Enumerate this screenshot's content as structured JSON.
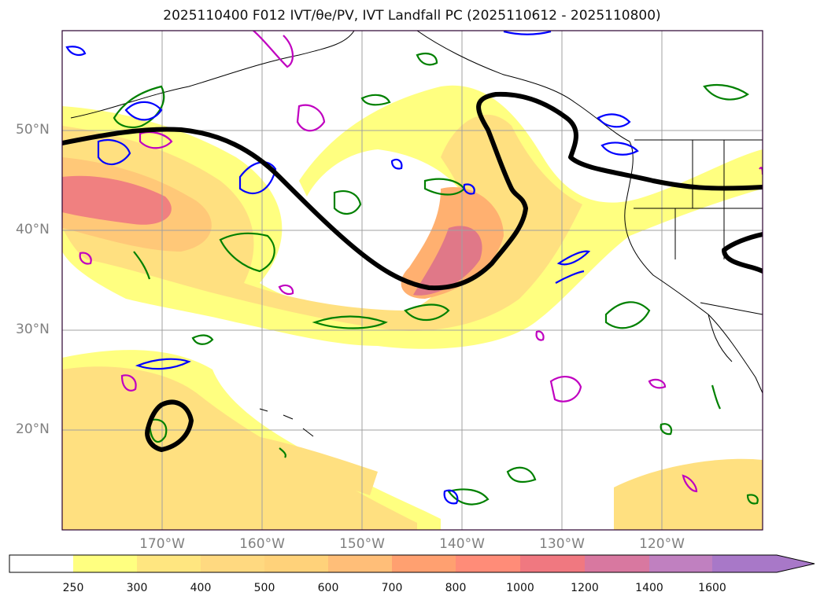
{
  "title": "2025110400 F012 IVT/θe/PV, IVT Landfall PC (2025110612 - 2025110800)",
  "map": {
    "lat_labels": [
      "50°N",
      "40°N",
      "30°N",
      "20°N"
    ],
    "lon_labels": [
      "170°W",
      "160°W",
      "150°W",
      "140°W",
      "130°W",
      "120°W"
    ]
  },
  "colorbar": {
    "ticks": [
      "250",
      "300",
      "400",
      "500",
      "600",
      "700",
      "800",
      "1000",
      "1200",
      "1400",
      "1600"
    ],
    "colors": [
      "#ffffff",
      "#ffff80",
      "#ffe680",
      "#ffd980",
      "#ffd27a",
      "#ffbe78",
      "#ffa070",
      "#ff8c78",
      "#f07880",
      "#d878a0",
      "#c080c0",
      "#a878c8"
    ],
    "extend": "max"
  },
  "legend_colors": {
    "theta_e": "#008000",
    "pv_low": "#0000ff",
    "pv_high": "#c000c0",
    "landfall_pc": "#000000"
  }
}
